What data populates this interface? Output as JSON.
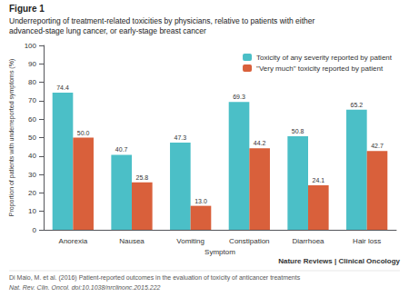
{
  "chart_data": {
    "type": "bar",
    "title": "Figure 1",
    "subtitle": "Underreporting of treatment-related toxicities by physicians, relative to patients with either\nadvanced-stage lung cancer, or early-stage breast cancer",
    "xlabel": "Symptom",
    "ylabel": "Proportion of patients with underreported symptoms (%)",
    "categories": [
      "Anorexia",
      "Nausea",
      "Vomiting",
      "Constipation",
      "Diarrhoea",
      "Hair loss"
    ],
    "series": [
      {
        "name": "Toxicity of any severity reported by patient",
        "color": "#4BBFC7",
        "values": [
          74.4,
          40.7,
          47.3,
          69.3,
          50.8,
          65.2
        ]
      },
      {
        "name": "\"Very much\" toxicity reported by patient",
        "color": "#D9603B",
        "values": [
          50.0,
          25.8,
          13.0,
          44.2,
          24.1,
          42.7
        ],
        "value_labels": [
          "50.0",
          "25.8",
          "13.0",
          "44.2",
          "24.1",
          "42.7"
        ]
      }
    ],
    "ylim": [
      0,
      100
    ],
    "yticks": [
      0,
      10,
      20,
      30,
      40,
      50,
      60,
      70,
      80,
      90,
      100
    ],
    "grid": false,
    "legend": "upper right",
    "data_labels": true,
    "annotations": [
      "Nature Reviews | Clinical Oncology",
      "Di Maio, M. et al. (2016) Patient-reported outcomes in the evaluation of toxicity of anticancer treatments",
      "Nat. Rev. Clin. Oncol. doi:10.1038/nrclinonc.2015.222"
    ]
  }
}
